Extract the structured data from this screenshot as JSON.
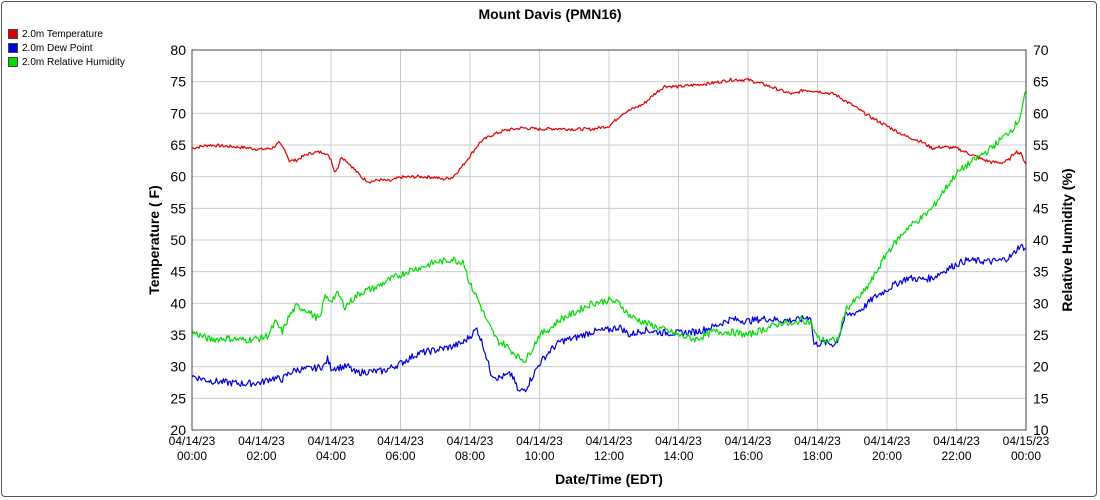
{
  "chart_data": {
    "type": "line",
    "title": "Mount Davis (PMN16)",
    "xlabel": "Date/Time (EDT)",
    "ylabel_left": "Temperature ( F)",
    "ylabel_right": "Relative Humidity (%)",
    "ylim_left": [
      20,
      80
    ],
    "ylim_right": [
      10,
      70
    ],
    "yticks_left": [
      "20",
      "25",
      "30",
      "35",
      "40",
      "45",
      "50",
      "55",
      "60",
      "65",
      "70",
      "75",
      "80"
    ],
    "yticks_right": [
      "10",
      "15",
      "20",
      "25",
      "30",
      "35",
      "40",
      "45",
      "50",
      "55",
      "60",
      "65",
      "70"
    ],
    "x_range_hours": [
      0,
      24
    ],
    "x_ticks": [
      {
        "h": 0,
        "date": "04/14/23",
        "time": "00:00"
      },
      {
        "h": 2,
        "date": "04/14/23",
        "time": "02:00"
      },
      {
        "h": 4,
        "date": "04/14/23",
        "time": "04:00"
      },
      {
        "h": 6,
        "date": "04/14/23",
        "time": "06:00"
      },
      {
        "h": 8,
        "date": "04/14/23",
        "time": "08:00"
      },
      {
        "h": 10,
        "date": "04/14/23",
        "time": "10:00"
      },
      {
        "h": 12,
        "date": "04/14/23",
        "time": "12:00"
      },
      {
        "h": 14,
        "date": "04/14/23",
        "time": "14:00"
      },
      {
        "h": 16,
        "date": "04/14/23",
        "time": "16:00"
      },
      {
        "h": 18,
        "date": "04/14/23",
        "time": "18:00"
      },
      {
        "h": 20,
        "date": "04/14/23",
        "time": "20:00"
      },
      {
        "h": 22,
        "date": "04/14/23",
        "time": "22:00"
      },
      {
        "h": 24,
        "date": "04/15/23",
        "time": "00:00"
      }
    ],
    "grid": true,
    "legend_position": "top-left",
    "series": [
      {
        "name": "2.0m Temperature",
        "color": "#e00000",
        "axis": "left",
        "points": [
          [
            0,
            64.5
          ],
          [
            0.5,
            65
          ],
          [
            1,
            64.8
          ],
          [
            1.5,
            64.6
          ],
          [
            2,
            64.3
          ],
          [
            2.3,
            64.5
          ],
          [
            2.5,
            65.3
          ],
          [
            2.7,
            64
          ],
          [
            2.8,
            62.5
          ],
          [
            3,
            62.6
          ],
          [
            3.3,
            63.5
          ],
          [
            3.5,
            63.8
          ],
          [
            3.8,
            63.9
          ],
          [
            4,
            62.8
          ],
          [
            4.1,
            60.8
          ],
          [
            4.2,
            61.5
          ],
          [
            4.3,
            63.2
          ],
          [
            4.5,
            62.2
          ],
          [
            4.7,
            61
          ],
          [
            4.9,
            59.8
          ],
          [
            5.1,
            59.2
          ],
          [
            5.4,
            59.5
          ],
          [
            5.7,
            59.3
          ],
          [
            6,
            59.9
          ],
          [
            6.5,
            60
          ],
          [
            7,
            59.9
          ],
          [
            7.2,
            59.6
          ],
          [
            7.5,
            59.9
          ],
          [
            7.8,
            61.8
          ],
          [
            8,
            63.3
          ],
          [
            8.3,
            65.5
          ],
          [
            8.6,
            66.5
          ],
          [
            9,
            67.3
          ],
          [
            9.5,
            67.7
          ],
          [
            10,
            67.5
          ],
          [
            10.5,
            67.6
          ],
          [
            11,
            67.5
          ],
          [
            11.5,
            67.5
          ],
          [
            12,
            68
          ],
          [
            12.4,
            70
          ],
          [
            12.8,
            71
          ],
          [
            13,
            71.5
          ],
          [
            13.3,
            73
          ],
          [
            13.6,
            74.3
          ],
          [
            14,
            74.2
          ],
          [
            14.5,
            74.5
          ],
          [
            15,
            74.8
          ],
          [
            15.5,
            75.3
          ],
          [
            16,
            75.3
          ],
          [
            16.5,
            74.5
          ],
          [
            17,
            73.5
          ],
          [
            17.3,
            73
          ],
          [
            17.6,
            73.7
          ],
          [
            18,
            73.5
          ],
          [
            18.5,
            73
          ],
          [
            19,
            71.3
          ],
          [
            19.5,
            69.5
          ],
          [
            20,
            68
          ],
          [
            20.5,
            66.5
          ],
          [
            21,
            65.5
          ],
          [
            21.3,
            64.5
          ],
          [
            21.6,
            64.7
          ],
          [
            22,
            64.5
          ],
          [
            22.3,
            63.8
          ],
          [
            22.7,
            62.8
          ],
          [
            23,
            62.3
          ],
          [
            23.3,
            62.2
          ],
          [
            23.5,
            62.6
          ],
          [
            23.7,
            64
          ],
          [
            23.85,
            63.6
          ],
          [
            24,
            62
          ]
        ]
      },
      {
        "name": "2.0m Dew Point",
        "color": "#0000dd",
        "axis": "left",
        "points": [
          [
            0,
            28.5
          ],
          [
            0.5,
            27.8
          ],
          [
            1,
            27.5
          ],
          [
            1.5,
            27.3
          ],
          [
            2,
            27.5
          ],
          [
            2.3,
            28.2
          ],
          [
            2.6,
            28
          ],
          [
            2.8,
            29
          ],
          [
            3,
            29.5
          ],
          [
            3.5,
            29.7
          ],
          [
            3.8,
            30.1
          ],
          [
            3.9,
            31.2
          ],
          [
            4,
            29.8
          ],
          [
            4.5,
            30
          ],
          [
            4.7,
            29
          ],
          [
            5,
            29.2
          ],
          [
            5.5,
            29.3
          ],
          [
            6,
            30.5
          ],
          [
            6.5,
            32.1
          ],
          [
            7,
            32.6
          ],
          [
            7.5,
            33.2
          ],
          [
            7.8,
            33.8
          ],
          [
            8,
            34.8
          ],
          [
            8.2,
            36
          ],
          [
            8.4,
            33
          ],
          [
            8.6,
            29
          ],
          [
            8.8,
            28.2
          ],
          [
            9,
            28.5
          ],
          [
            9.2,
            28.8
          ],
          [
            9.4,
            26
          ],
          [
            9.6,
            26.5
          ],
          [
            9.8,
            28.5
          ],
          [
            10,
            30.5
          ],
          [
            10.3,
            32.5
          ],
          [
            10.6,
            34
          ],
          [
            11,
            34.5
          ],
          [
            11.5,
            35.5
          ],
          [
            12,
            35.8
          ],
          [
            12.3,
            36.3
          ],
          [
            12.6,
            35
          ],
          [
            13,
            35.8
          ],
          [
            13.5,
            35.4
          ],
          [
            14,
            35.3
          ],
          [
            14.5,
            35.5
          ],
          [
            15,
            36.3
          ],
          [
            15.5,
            37.5
          ],
          [
            16,
            37.2
          ],
          [
            16.5,
            37.6
          ],
          [
            17,
            37.3
          ],
          [
            17.5,
            37.4
          ],
          [
            17.8,
            38
          ],
          [
            17.9,
            33.5
          ],
          [
            18.2,
            33.8
          ],
          [
            18.5,
            33.5
          ],
          [
            18.6,
            34.5
          ],
          [
            18.8,
            38
          ],
          [
            19,
            38.3
          ],
          [
            19.3,
            39.2
          ],
          [
            19.6,
            40.8
          ],
          [
            20,
            42.2
          ],
          [
            20.3,
            43.2
          ],
          [
            20.6,
            44
          ],
          [
            21,
            43.8
          ],
          [
            21.3,
            44
          ],
          [
            21.6,
            45
          ],
          [
            22,
            46.2
          ],
          [
            22.3,
            46.8
          ],
          [
            22.6,
            46.7
          ],
          [
            23,
            46.6
          ],
          [
            23.3,
            46.8
          ],
          [
            23.6,
            47.5
          ],
          [
            23.8,
            49
          ],
          [
            24,
            48.8
          ]
        ]
      },
      {
        "name": "2.0m Relative Humidity",
        "color": "#00dd00",
        "axis": "right",
        "points": [
          [
            0,
            25.5
          ],
          [
            0.5,
            24.3
          ],
          [
            1,
            24.5
          ],
          [
            1.5,
            24.2
          ],
          [
            2,
            24.5
          ],
          [
            2.2,
            25
          ],
          [
            2.4,
            27
          ],
          [
            2.6,
            25.5
          ],
          [
            2.8,
            28
          ],
          [
            3,
            29.5
          ],
          [
            3.3,
            29
          ],
          [
            3.5,
            28
          ],
          [
            3.7,
            27.5
          ],
          [
            3.8,
            31
          ],
          [
            4,
            30.5
          ],
          [
            4.2,
            31.5
          ],
          [
            4.4,
            29.5
          ],
          [
            4.6,
            30.5
          ],
          [
            4.8,
            31.5
          ],
          [
            5,
            32
          ],
          [
            5.3,
            32.5
          ],
          [
            5.6,
            33.5
          ],
          [
            6,
            34.5
          ],
          [
            6.3,
            35.3
          ],
          [
            6.6,
            35.7
          ],
          [
            7,
            36.5
          ],
          [
            7.3,
            36.7
          ],
          [
            7.5,
            37
          ],
          [
            7.7,
            36.5
          ],
          [
            7.8,
            36.8
          ],
          [
            8,
            33
          ],
          [
            8.2,
            31
          ],
          [
            8.5,
            27
          ],
          [
            8.8,
            24
          ],
          [
            9,
            23.5
          ],
          [
            9.2,
            22.5
          ],
          [
            9.4,
            21.5
          ],
          [
            9.6,
            21
          ],
          [
            9.8,
            23
          ],
          [
            10,
            25
          ],
          [
            10.3,
            26
          ],
          [
            10.6,
            27.5
          ],
          [
            11,
            28.5
          ],
          [
            11.5,
            30
          ],
          [
            12,
            30.5
          ],
          [
            12.3,
            30
          ],
          [
            12.6,
            28
          ],
          [
            13,
            27
          ],
          [
            13.5,
            26
          ],
          [
            14,
            25
          ],
          [
            14.5,
            24.3
          ],
          [
            15,
            25.5
          ],
          [
            15.5,
            25.5
          ],
          [
            16,
            25
          ],
          [
            16.5,
            26
          ],
          [
            17,
            27
          ],
          [
            17.3,
            26.5
          ],
          [
            17.5,
            27.5
          ],
          [
            17.8,
            27
          ],
          [
            18,
            24.5
          ],
          [
            18.3,
            24
          ],
          [
            18.6,
            24.3
          ],
          [
            18.8,
            29
          ],
          [
            19,
            30
          ],
          [
            19.3,
            31.5
          ],
          [
            19.6,
            34
          ],
          [
            20,
            38
          ],
          [
            20.3,
            40
          ],
          [
            20.6,
            42
          ],
          [
            21,
            43.5
          ],
          [
            21.3,
            45
          ],
          [
            21.6,
            47.5
          ],
          [
            22,
            50.5
          ],
          [
            22.3,
            51.8
          ],
          [
            22.6,
            53
          ],
          [
            23,
            54.5
          ],
          [
            23.3,
            56
          ],
          [
            23.6,
            57.5
          ],
          [
            23.8,
            59
          ],
          [
            24,
            63.5
          ]
        ]
      }
    ]
  }
}
